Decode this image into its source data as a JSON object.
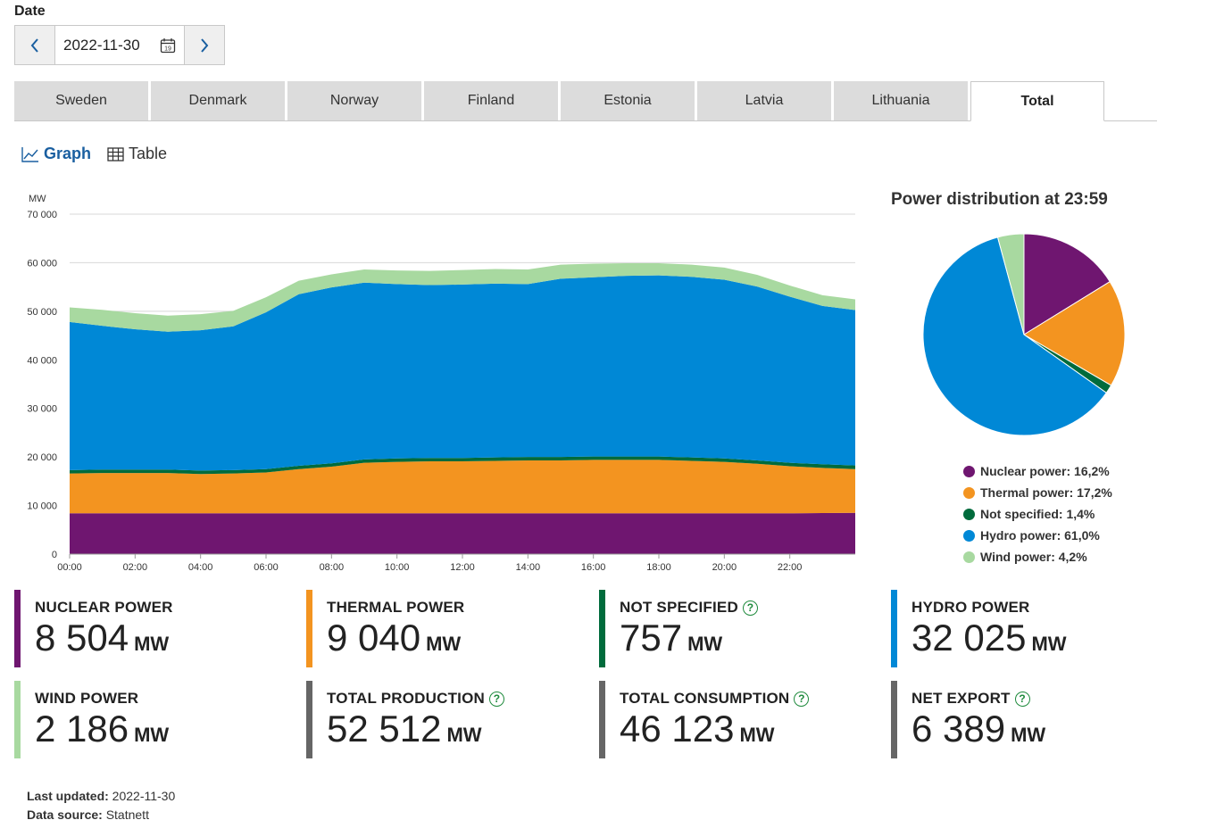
{
  "date_label": "Date",
  "date_value": "2022-11-30",
  "calendar_day": "19",
  "tabs": [
    "Sweden",
    "Denmark",
    "Norway",
    "Finland",
    "Estonia",
    "Latvia",
    "Lithuania",
    "Total"
  ],
  "active_tab": "Total",
  "views": {
    "graph": "Graph",
    "table": "Table",
    "active": "Graph"
  },
  "pie": {
    "title": "Power distribution at 23:59",
    "legend": [
      {
        "label": "Nuclear power: 16,2%",
        "color": "#6f1670"
      },
      {
        "label": "Thermal power: 17,2%",
        "color": "#f39420"
      },
      {
        "label": "Not specified: 1,4%",
        "color": "#006b3c"
      },
      {
        "label": "Hydro power: 61,0%",
        "color": "#0088d6"
      },
      {
        "label": "Wind power: 4,2%",
        "color": "#a8d9a0"
      }
    ]
  },
  "stats": [
    {
      "label": "NUCLEAR POWER",
      "value": "8 504",
      "unit": "MW",
      "color": "#6f1670",
      "help": false
    },
    {
      "label": "THERMAL POWER",
      "value": "9 040",
      "unit": "MW",
      "color": "#f39420",
      "help": false
    },
    {
      "label": "NOT SPECIFIED",
      "value": "757",
      "unit": "MW",
      "color": "#006b3c",
      "help": true
    },
    {
      "label": "HYDRO POWER",
      "value": "32 025",
      "unit": "MW",
      "color": "#0088d6",
      "help": false
    },
    {
      "label": "WIND POWER",
      "value": "2 186",
      "unit": "MW",
      "color": "#a8d9a0",
      "help": false
    },
    {
      "label": "TOTAL PRODUCTION",
      "value": "52 512",
      "unit": "MW",
      "color": "#666666",
      "help": true
    },
    {
      "label": "TOTAL CONSUMPTION",
      "value": "46 123",
      "unit": "MW",
      "color": "#666666",
      "help": true
    },
    {
      "label": "NET EXPORT",
      "value": "6 389",
      "unit": "MW",
      "color": "#666666",
      "help": true
    }
  ],
  "footer": {
    "updated_label": "Last updated:",
    "updated_value": "2022-11-30",
    "source_label": "Data source:",
    "source_value": "Statnett"
  },
  "chart_data": [
    {
      "type": "area",
      "stacked": true,
      "ylabel": "MW",
      "ylim": [
        0,
        70000
      ],
      "yticks": [
        "0",
        "10 000",
        "20 000",
        "30 000",
        "40 000",
        "50 000",
        "60 000",
        "70 000"
      ],
      "xlim": [
        0,
        24
      ],
      "xticks": [
        "00:00",
        "02:00",
        "04:00",
        "06:00",
        "08:00",
        "10:00",
        "12:00",
        "14:00",
        "16:00",
        "18:00",
        "20:00",
        "22:00"
      ],
      "x": [
        0,
        1,
        2,
        3,
        4,
        5,
        6,
        7,
        8,
        9,
        10,
        11,
        12,
        13,
        14,
        15,
        16,
        17,
        18,
        19,
        20,
        21,
        22,
        23,
        24
      ],
      "series": [
        {
          "name": "Nuclear power",
          "color": "#6f1670",
          "values": [
            8400,
            8400,
            8400,
            8400,
            8400,
            8400,
            8400,
            8400,
            8400,
            8400,
            8400,
            8400,
            8400,
            8400,
            8400,
            8400,
            8400,
            8400,
            8400,
            8400,
            8400,
            8400,
            8400,
            8450,
            8500
          ]
        },
        {
          "name": "Thermal power",
          "color": "#f39420",
          "values": [
            8200,
            8300,
            8300,
            8300,
            8100,
            8200,
            8400,
            9100,
            9600,
            10400,
            10600,
            10700,
            10700,
            10800,
            10900,
            10900,
            11000,
            11000,
            11000,
            10800,
            10600,
            10200,
            9700,
            9300,
            9000
          ]
        },
        {
          "name": "Not specified",
          "color": "#006b3c",
          "values": [
            700,
            700,
            700,
            700,
            700,
            700,
            700,
            700,
            700,
            700,
            700,
            700,
            700,
            700,
            700,
            700,
            700,
            700,
            700,
            700,
            700,
            700,
            700,
            750,
            760
          ]
        },
        {
          "name": "Hydro power",
          "color": "#0088d6",
          "values": [
            30500,
            29600,
            28900,
            28400,
            28900,
            29600,
            32300,
            35300,
            36200,
            36400,
            35900,
            35600,
            35700,
            35800,
            35600,
            36700,
            36900,
            37200,
            37300,
            37200,
            36800,
            35800,
            34200,
            32600,
            32000
          ]
        },
        {
          "name": "Wind power",
          "color": "#a8d9a0",
          "values": [
            3000,
            3300,
            3300,
            3300,
            3300,
            3200,
            3100,
            2800,
            2700,
            2700,
            2800,
            2900,
            3000,
            3000,
            3000,
            2900,
            2800,
            2600,
            2500,
            2500,
            2500,
            2400,
            2300,
            2200,
            2190
          ]
        }
      ]
    },
    {
      "type": "pie",
      "title": "Power distribution at 23:59",
      "categories": [
        "Nuclear power",
        "Thermal power",
        "Not specified",
        "Hydro power",
        "Wind power"
      ],
      "values": [
        16.2,
        17.2,
        1.4,
        61.0,
        4.2
      ],
      "colors": [
        "#6f1670",
        "#f39420",
        "#006b3c",
        "#0088d6",
        "#a8d9a0"
      ]
    }
  ]
}
